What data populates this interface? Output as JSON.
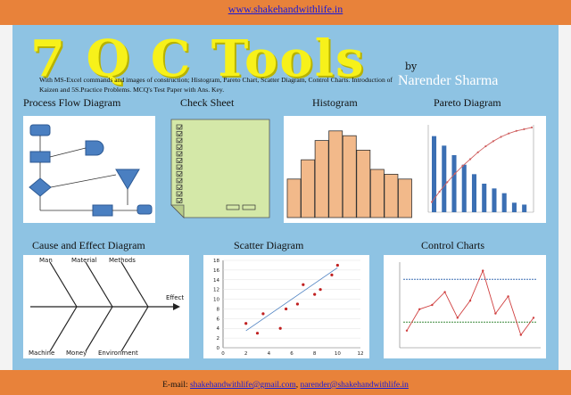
{
  "header": {
    "site": "www.shakehandwithlife.in"
  },
  "hero": {
    "title": "7 Q C Tools",
    "by": "by",
    "author": "Narender Sharma",
    "description": "With MS-Excel commands and images of construction; Histogram, Pareto Chart, Scatter Diagram, Control Charts. Introduction of Kaizen and 5S.Practice Problems. MCQ's Test Paper with Ans. Key."
  },
  "sections": {
    "process_flow": "Process Flow  Diagram",
    "check_sheet": "Check Sheet",
    "histogram": "Histogram",
    "pareto": "Pareto Diagram",
    "cause_effect": "Cause and Effect Diagram",
    "scatter": "Scatter Diagram",
    "control": "Control Charts"
  },
  "fishbone": {
    "causes": [
      "Man",
      "Material",
      "Methods",
      "Machine",
      "Money",
      "Environment"
    ],
    "effect": "Effect"
  },
  "footer": {
    "label": "E-mail:",
    "email1": "shakehandwithlife@gmail.com",
    "separator": ",",
    "email2": "narender@shakehandwithlife.in"
  },
  "chart_data": [
    {
      "type": "bar",
      "name_hint": "histogram",
      "values": [
        4,
        6,
        8,
        9,
        8.5,
        7,
        5,
        4.5,
        4
      ]
    },
    {
      "type": "bar",
      "name_hint": "pareto",
      "values": [
        8,
        7,
        6,
        5,
        4,
        3,
        2.5,
        2,
        1,
        0.8
      ],
      "line": [
        12,
        24,
        35,
        45,
        54,
        62,
        70,
        77,
        83,
        88,
        92,
        95,
        97,
        99
      ]
    },
    {
      "type": "scatter",
      "name_hint": "scatter",
      "xlim": [
        0,
        12
      ],
      "ylim": [
        0,
        18
      ],
      "xticks": [
        "0",
        "2",
        "4",
        "6",
        "8",
        "10",
        "12"
      ],
      "yticks": [
        "0",
        "2",
        "4",
        "6",
        "8",
        "10",
        "12",
        "14",
        "16",
        "18"
      ],
      "x": [
        2,
        3,
        3.5,
        5,
        5.5,
        6.5,
        7,
        8,
        8.5,
        9.5,
        10
      ],
      "y": [
        5,
        3,
        7,
        4,
        8,
        9,
        13,
        11,
        12,
        15,
        17
      ]
    },
    {
      "type": "line",
      "name_hint": "control",
      "ucl": 0.8,
      "lcl": 0.3,
      "values": [
        0.2,
        0.45,
        0.5,
        0.65,
        0.35,
        0.55,
        0.9,
        0.4,
        0.6,
        0.15,
        0.35
      ]
    }
  ],
  "colors": {
    "accent": "#e8823a",
    "background": "#8ec3e3",
    "title": "#f7f11a",
    "check_sheet": "#d4e8a8"
  }
}
